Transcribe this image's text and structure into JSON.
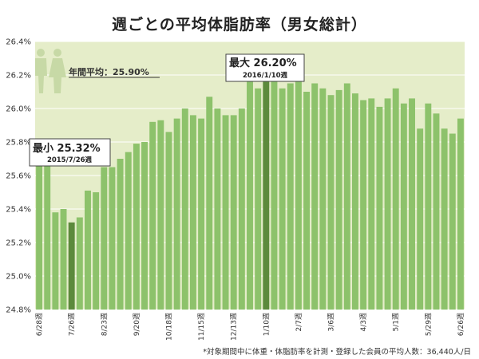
{
  "title": "週ごとの平均体脂肪率（男女総計）",
  "footnote": "*対象期間中に体重・体脂肪率を計測・登録した会員の平均人数：36,440人/日",
  "colors": {
    "bar": "#8dc26b",
    "highlight": "#5c8a3c",
    "plot_bg": "#e5edc9",
    "grid": "#ffffff",
    "avg_label": "#333333"
  },
  "icon": "male-female-people-icon",
  "avg_label": "年間平均：25.90%",
  "max_label": {
    "title": "最大 26.20%",
    "date": "2016/1/10週"
  },
  "min_label": {
    "title": "最小 25.32%",
    "date": "2015/7/26週"
  },
  "chart_data": {
    "type": "bar",
    "title": "週ごとの平均体脂肪率（男女総計）",
    "xlabel": "",
    "ylabel": "",
    "ylim": [
      24.8,
      26.4
    ],
    "yticks": [
      "24.8%",
      "25.0%",
      "25.2%",
      "25.4%",
      "25.6%",
      "25.8%",
      "26.0%",
      "26.2%",
      "26.4%"
    ],
    "grid": true,
    "xtick_labels": [
      {
        "index": 0,
        "label": "6/28週"
      },
      {
        "index": 4,
        "label": "7/26週"
      },
      {
        "index": 8,
        "label": "8/23週"
      },
      {
        "index": 12,
        "label": "9/20週"
      },
      {
        "index": 16,
        "label": "10/18週"
      },
      {
        "index": 20,
        "label": "11/15週"
      },
      {
        "index": 24,
        "label": "12/13週"
      },
      {
        "index": 28,
        "label": "1/10週"
      },
      {
        "index": 32,
        "label": "2/7週"
      },
      {
        "index": 36,
        "label": "3/6週"
      },
      {
        "index": 40,
        "label": "4/3週"
      },
      {
        "index": 44,
        "label": "5/1週"
      },
      {
        "index": 48,
        "label": "5/29週"
      },
      {
        "index": 52,
        "label": "6/26週"
      }
    ],
    "values": [
      25.67,
      25.67,
      25.38,
      25.4,
      25.32,
      25.35,
      25.51,
      25.5,
      25.65,
      25.65,
      25.7,
      25.74,
      25.79,
      25.8,
      25.92,
      25.93,
      25.86,
      25.94,
      26.0,
      25.96,
      25.94,
      26.07,
      26.0,
      25.96,
      25.96,
      26.0,
      26.19,
      26.12,
      26.2,
      26.17,
      26.12,
      26.15,
      26.17,
      26.1,
      26.15,
      26.12,
      26.08,
      26.11,
      26.15,
      26.09,
      26.05,
      26.06,
      26.01,
      26.06,
      26.12,
      26.03,
      26.06,
      25.88,
      26.03,
      25.97,
      25.88,
      25.85,
      25.94
    ],
    "highlight_indices": [
      4,
      28
    ],
    "average": 25.9
  }
}
